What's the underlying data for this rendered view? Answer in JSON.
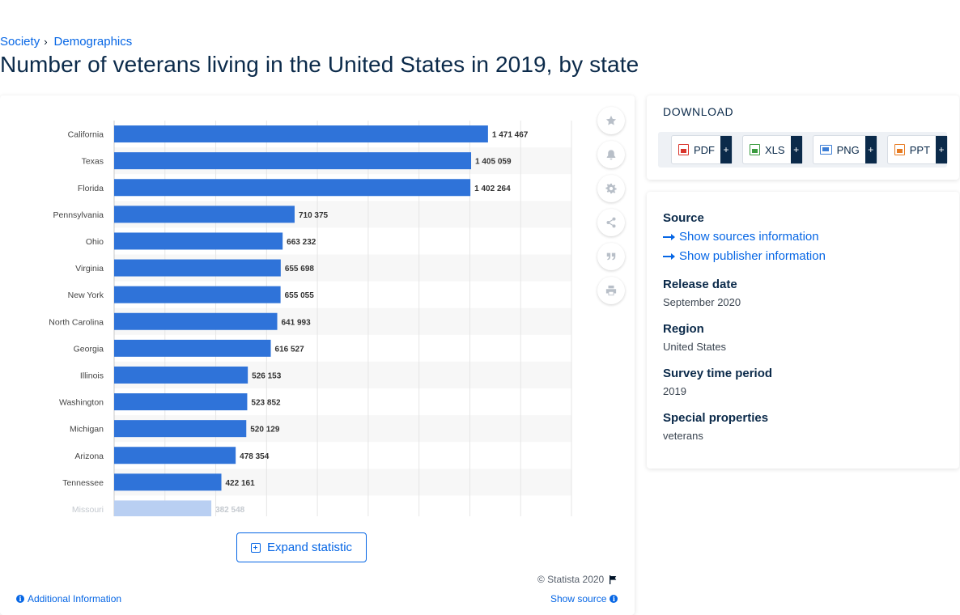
{
  "breadcrumb": {
    "parent": "Society",
    "separator": "›",
    "current": "Demographics"
  },
  "page_title": "Number of veterans living in the United States in 2019, by state",
  "chart_data": {
    "type": "bar",
    "orientation": "horizontal",
    "categories": [
      "California",
      "Texas",
      "Florida",
      "Pennsylvania",
      "Ohio",
      "Virginia",
      "New York",
      "North Carolina",
      "Georgia",
      "Illinois",
      "Washington",
      "Michigan",
      "Arizona",
      "Tennessee",
      "Missouri"
    ],
    "values": [
      1471467,
      1405059,
      1402264,
      710375,
      663232,
      655698,
      655055,
      641993,
      616527,
      526153,
      523852,
      520129,
      478354,
      422161,
      382548
    ],
    "value_labels": [
      "1 471 467",
      "1 405 059",
      "1 402 264",
      "710 375",
      "663 232",
      "655 698",
      "655 055",
      "641 993",
      "616 527",
      "526 153",
      "523 852",
      "520 129",
      "478 354",
      "422 161",
      "382 548"
    ],
    "xlim": [
      0,
      1800000
    ],
    "grid": true,
    "bar_color": "#2f73d9",
    "title": "",
    "xlabel": "",
    "ylabel": ""
  },
  "chart_tools": [
    "star-icon",
    "bell-icon",
    "gear-icon",
    "share-icon",
    "quote-icon",
    "print-icon"
  ],
  "expand_label": "Expand statistic",
  "copyright": "© Statista 2020",
  "additional_info": "Additional Information",
  "show_source": "Show source",
  "download": {
    "title": "DOWNLOAD",
    "buttons": [
      {
        "label": "PDF",
        "plus": "+",
        "color": "#d9342b"
      },
      {
        "label": "XLS",
        "plus": "+",
        "color": "#3a9b3f"
      },
      {
        "label": "PNG",
        "plus": "+",
        "color": "#3c7ed6"
      },
      {
        "label": "PPT",
        "plus": "+",
        "color": "#e77b22"
      }
    ]
  },
  "info": {
    "source_heading": "Source",
    "show_sources": "Show sources information",
    "show_publisher": "Show publisher information",
    "release_heading": "Release date",
    "release_value": "September 2020",
    "region_heading": "Region",
    "region_value": "United States",
    "survey_heading": "Survey time period",
    "survey_value": "2019",
    "special_heading": "Special properties",
    "special_value": "veterans"
  }
}
